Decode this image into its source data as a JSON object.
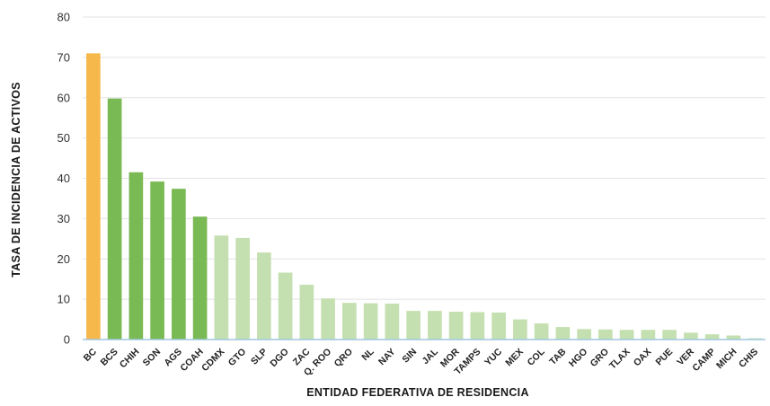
{
  "chart_data": {
    "type": "bar",
    "title": "",
    "xlabel": "ENTIDAD FEDERATIVA DE RESIDENCIA",
    "ylabel": "TASA DE INCIDENCIA DE ACTIVOS",
    "ylim": [
      0,
      80
    ],
    "yticks": [
      0,
      10,
      20,
      30,
      40,
      50,
      60,
      70,
      80
    ],
    "grid": true,
    "categories": [
      "BC",
      "BCS",
      "CHIH",
      "SON",
      "AGS",
      "COAH",
      "CDMX",
      "GTO",
      "SLP",
      "DGO",
      "ZAC",
      "Q. ROO",
      "QRO",
      "NL",
      "NAY",
      "SIN",
      "JAL",
      "MOR",
      "TAMPS",
      "YUC",
      "MEX",
      "COL",
      "TAB",
      "HGO",
      "GRO",
      "TLAX",
      "OAX",
      "PUE",
      "VER",
      "CAMP",
      "MICH",
      "CHIS"
    ],
    "values": [
      71,
      59.8,
      41.5,
      39.2,
      37.4,
      30.5,
      25.8,
      25.2,
      21.6,
      16.6,
      13.6,
      10.2,
      9.1,
      9.0,
      8.9,
      7.1,
      7.1,
      6.9,
      6.8,
      6.7,
      5.0,
      4.0,
      3.1,
      2.6,
      2.5,
      2.4,
      2.4,
      2.4,
      1.7,
      1.3,
      1.0,
      0.3
    ],
    "colors": {
      "highest": "#f7b84b",
      "high": "#7aba55",
      "medium": "#c5e0b0",
      "baseline": "#9fc6e0",
      "grid": "#e3e3e3"
    },
    "bar_color_groups": [
      "highest",
      "high",
      "high",
      "high",
      "high",
      "high",
      "medium",
      "medium",
      "medium",
      "medium",
      "medium",
      "medium",
      "medium",
      "medium",
      "medium",
      "medium",
      "medium",
      "medium",
      "medium",
      "medium",
      "medium",
      "medium",
      "medium",
      "medium",
      "medium",
      "medium",
      "medium",
      "medium",
      "medium",
      "medium",
      "medium",
      "medium"
    ]
  }
}
